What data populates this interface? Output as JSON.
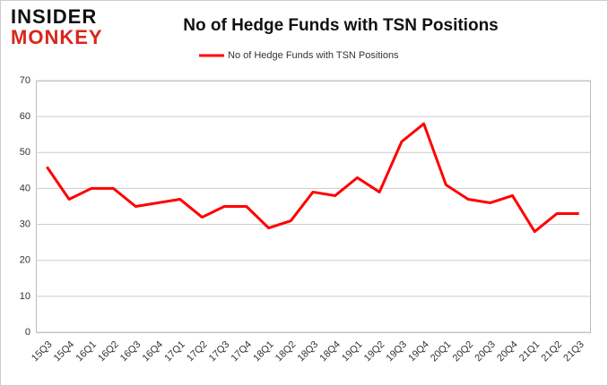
{
  "logo": {
    "line1": "INSIDER",
    "line2": "MONKEY"
  },
  "chart_data": {
    "type": "line",
    "title": "No of Hedge Funds with TSN Positions",
    "categories": [
      "15Q3",
      "15Q4",
      "16Q1",
      "16Q2",
      "16Q3",
      "16Q4",
      "17Q1",
      "17Q2",
      "17Q3",
      "17Q4",
      "18Q1",
      "18Q2",
      "18Q3",
      "18Q4",
      "19Q1",
      "19Q2",
      "19Q3",
      "19Q4",
      "20Q1",
      "20Q2",
      "20Q3",
      "20Q4",
      "21Q1",
      "21Q2",
      "21Q3"
    ],
    "series": [
      {
        "name": "No of Hedge Funds with TSN Positions",
        "color": "#ff0000",
        "values": [
          46,
          37,
          40,
          40,
          35,
          36,
          37,
          32,
          35,
          35,
          29,
          31,
          39,
          38,
          43,
          39,
          53,
          58,
          41,
          37,
          36,
          38,
          28,
          33,
          33
        ]
      }
    ],
    "ylim": [
      0,
      70
    ],
    "yticks": [
      0,
      10,
      20,
      30,
      40,
      50,
      60,
      70
    ],
    "grid": true,
    "legend": "top"
  }
}
